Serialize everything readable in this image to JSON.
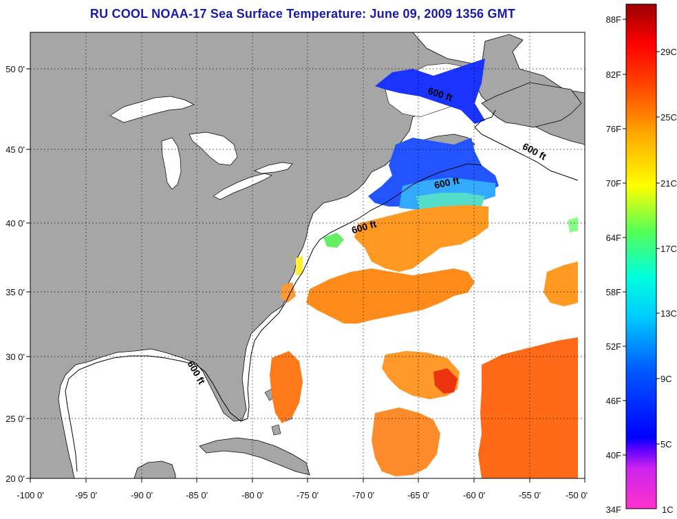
{
  "title": "RU COOL  NOAA-17  Sea Surface Temperature:  June 09, 2009 1356 GMT",
  "colors": {
    "land": "#a6a6a6",
    "ocean": "#ffffff",
    "title_blue": "#1a1aa8"
  },
  "axes": {
    "longitude_labels": [
      "-100 0'",
      "-95 0'",
      "-90 0'",
      "-85 0'",
      "-80 0'",
      "-75 0'",
      "-70 0'",
      "-65 0'",
      "-60 0'",
      "-55 0'",
      "-50 0'"
    ],
    "latitude_labels": [
      "50 0'",
      "45 0'",
      "40 0'",
      "35 0'",
      "30 0'",
      "25 0'",
      "20 0'"
    ]
  },
  "isobath_label": "600 ft",
  "colorbar": {
    "fahrenheit_labels": [
      "88F",
      "82F",
      "76F",
      "70F",
      "64F",
      "58F",
      "52F",
      "46F",
      "40F",
      "34F"
    ],
    "celsius_labels": [
      "29C",
      "25C",
      "21C",
      "17C",
      "13C",
      "9C",
      "5C",
      "1C"
    ]
  }
}
